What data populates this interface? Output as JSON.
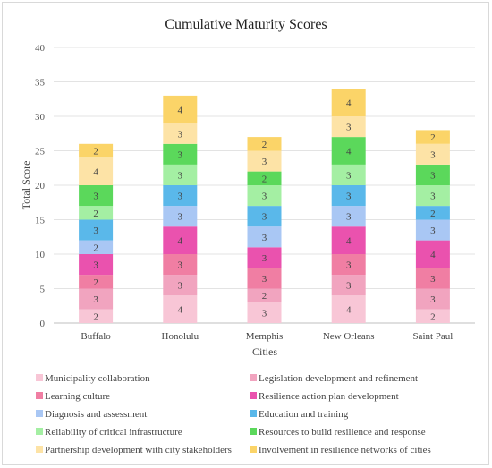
{
  "chart_data": {
    "type": "stacked-bar",
    "title": "Cumulative Maturity Scores",
    "xlabel": "Cities",
    "ylabel": "Total Score",
    "ylim": [
      0,
      40
    ],
    "yticks": [
      0,
      5,
      10,
      15,
      20,
      25,
      30,
      35,
      40
    ],
    "grid": true,
    "legend_position": "bottom",
    "categories": [
      "Buffalo",
      "Honolulu",
      "Memphis",
      "New Orleans",
      "Saint Paul"
    ],
    "series": [
      {
        "name": "Municipality collaboration",
        "color": "#f8c6d6",
        "values": [
          2,
          4,
          3,
          4,
          2
        ]
      },
      {
        "name": "Legislation development and refinement",
        "color": "#f1a4bf",
        "values": [
          3,
          3,
          2,
          3,
          3
        ]
      },
      {
        "name": "Learning culture",
        "color": "#f07ea3",
        "values": [
          2,
          3,
          3,
          3,
          3
        ]
      },
      {
        "name": "Resilience action plan development",
        "color": "#ea52ae",
        "values": [
          3,
          4,
          3,
          4,
          4
        ]
      },
      {
        "name": "Diagnosis and assessment",
        "color": "#a9c7f4",
        "values": [
          2,
          3,
          3,
          3,
          3
        ]
      },
      {
        "name": "Education and training",
        "color": "#5ab8ea",
        "values": [
          3,
          3,
          3,
          3,
          2
        ]
      },
      {
        "name": "Reliability of critical infrastructure",
        "color": "#a4efa3",
        "values": [
          2,
          3,
          3,
          3,
          3
        ]
      },
      {
        "name": "Resources to build resilience and response",
        "color": "#5bd85b",
        "values": [
          3,
          3,
          2,
          4,
          3
        ]
      },
      {
        "name": "Partnership development with city stakeholders",
        "color": "#fde3a6",
        "values": [
          4,
          3,
          3,
          3,
          3
        ]
      },
      {
        "name": "Involvement in resilience networks of cities",
        "color": "#fbd468",
        "values": [
          2,
          4,
          2,
          4,
          2
        ]
      }
    ]
  }
}
